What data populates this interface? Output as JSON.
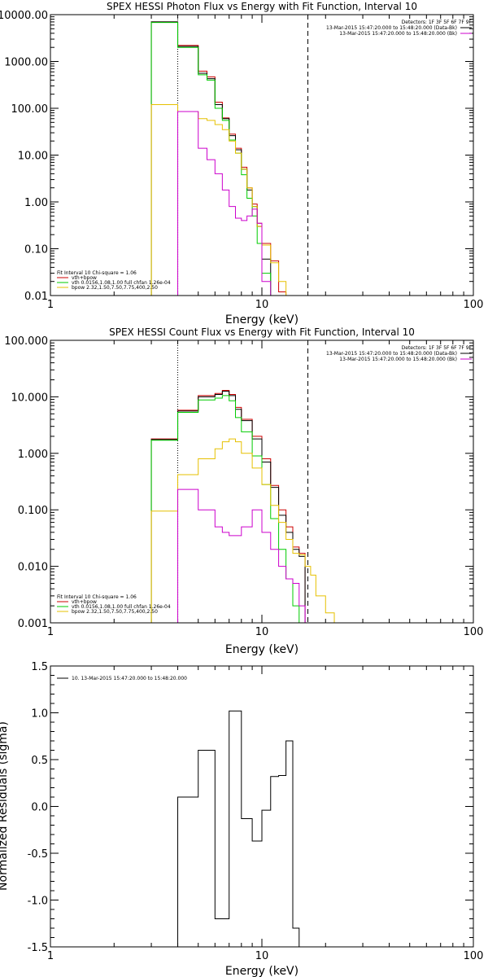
{
  "colors": {
    "total": "#000000",
    "data": "#cc0000",
    "vth": "#00cc00",
    "bpow": "#e6c000",
    "bkg": "#cc00cc"
  },
  "chart_data": [
    {
      "type": "line",
      "title": "SPEX HESSI Photon Flux vs Energy with Fit Function, Interval 10",
      "xlabel": "Energy (keV)",
      "ylabel": "",
      "xscale": "log",
      "yscale": "log",
      "xlim": [
        1,
        100
      ],
      "ylim": [
        0.01,
        10000
      ],
      "x_ticks": [
        1,
        10,
        100
      ],
      "x_tick_labels": [
        "1",
        "10",
        "100"
      ],
      "y_ticks": [
        0.01,
        0.1,
        1,
        10,
        100,
        1000,
        10000
      ],
      "y_tick_labels": [
        "0.01",
        "0.10",
        "1.00",
        "10.00",
        "100.00",
        "1000.00",
        "10000.00"
      ],
      "vlines": [
        {
          "x": 4.0,
          "style": "dotted"
        },
        {
          "x": 16.5,
          "style": "dashed"
        }
      ],
      "bin_edges": [
        3,
        4,
        5,
        5.5,
        6,
        6.5,
        7,
        7.5,
        8,
        8.5,
        9,
        9.5,
        10,
        11,
        12,
        13,
        14,
        15,
        16,
        17,
        18,
        20,
        22
      ],
      "series": [
        {
          "name": "data",
          "color": "#cc0000",
          "values": [
            7000,
            2200,
            620,
            470,
            135,
            62,
            28,
            14,
            5.5,
            2.0,
            0.9,
            0.35,
            0.13,
            0.055,
            0.012
          ]
        },
        {
          "name": "vth+bpow",
          "color": "#000000",
          "values": [
            7000,
            2100,
            560,
            430,
            120,
            60,
            26,
            13,
            5.0,
            1.8,
            0.8,
            0.3,
            0.06,
            0.008
          ]
        },
        {
          "name": "vth",
          "color": "#00cc00",
          "values": [
            6800,
            2000,
            520,
            400,
            100,
            55,
            21,
            11,
            3.8,
            1.2,
            0.5,
            0.13,
            0.03,
            0.008
          ]
        },
        {
          "name": "bpow",
          "color": "#e6c000",
          "values": [
            120,
            85,
            60,
            55,
            45,
            35,
            20,
            11,
            5.0,
            2.0,
            0.8,
            0.3,
            0.12,
            0.05,
            0.02,
            0.01
          ]
        },
        {
          "name": "bkg",
          "color": "#cc00cc",
          "values": [
            0.01,
            85,
            14,
            8,
            4,
            1.8,
            0.8,
            0.45,
            0.4,
            0.5,
            0.7,
            0.35,
            0.02,
            0.009
          ]
        }
      ],
      "legend": {
        "placement": "bottom-left",
        "lines": [
          "Fit Interval 10    Chi-square = 1.06",
          "vth+bpow",
          "vth 0.0156,1.08,1.00  full chfan 1.26e-04",
          "bpow 2.32,1.50,7.50,7.75,400,2.50"
        ]
      },
      "info": {
        "placement": "top-right",
        "lines": [
          "Detectors: 1F 3F 5F 6F 7F 9F",
          "13-Mar-2015 15:47:20.000 to 15:48:20.000 (Data-Bk)",
          "13-Mar-2015 15:47:20.000 to 15:48:20.000 (Bk)"
        ]
      }
    },
    {
      "type": "line",
      "title": "SPEX HESSI Count Flux vs Energy with Fit Function, Interval 10",
      "xlabel": "Energy (keV)",
      "ylabel": "",
      "xscale": "log",
      "yscale": "log",
      "xlim": [
        1,
        100
      ],
      "ylim": [
        0.001,
        100
      ],
      "x_ticks": [
        1,
        10,
        100
      ],
      "x_tick_labels": [
        "1",
        "10",
        "100"
      ],
      "y_ticks": [
        0.001,
        0.01,
        0.1,
        1,
        10,
        100
      ],
      "y_tick_labels": [
        "0.001",
        "0.010",
        "0.100",
        "1.000",
        "10.000",
        "100.000"
      ],
      "vlines": [
        {
          "x": 4.0,
          "style": "dotted"
        },
        {
          "x": 16.5,
          "style": "dashed"
        }
      ],
      "bin_edges": [
        3,
        4,
        5,
        6,
        6.5,
        7,
        7.5,
        8,
        9,
        10,
        11,
        12,
        13,
        14,
        15,
        16,
        17,
        18,
        20,
        22
      ],
      "series": [
        {
          "name": "data",
          "color": "#cc0000",
          "values": [
            1.8,
            5.8,
            10.5,
            11.5,
            13.0,
            11.0,
            6.5,
            4.0,
            2.0,
            0.8,
            0.27,
            0.1,
            0.05,
            0.022,
            0.017
          ]
        },
        {
          "name": "vth+bpow",
          "color": "#000000",
          "values": [
            1.75,
            5.6,
            10.0,
            11.0,
            12.5,
            10.5,
            6.0,
            3.8,
            1.8,
            0.7,
            0.25,
            0.08,
            0.04,
            0.02,
            0.015
          ]
        },
        {
          "name": "vth",
          "color": "#00cc00",
          "values": [
            1.7,
            5.3,
            8.8,
            9.5,
            10.5,
            8.5,
            4.3,
            2.4,
            0.9,
            0.28,
            0.07,
            0.02,
            0.006,
            0.002,
            0.001
          ]
        },
        {
          "name": "bpow",
          "color": "#e6c000",
          "values": [
            0.095,
            0.42,
            0.8,
            1.2,
            1.6,
            1.8,
            1.6,
            1.0,
            0.55,
            0.28,
            0.12,
            0.06,
            0.03,
            0.017,
            0.016,
            0.01,
            0.007,
            0.003,
            0.0015
          ]
        },
        {
          "name": "bkg",
          "color": "#cc00cc",
          "values": [
            0.001,
            0.23,
            0.1,
            0.05,
            0.04,
            0.035,
            0.035,
            0.05,
            0.1,
            0.04,
            0.02,
            0.01,
            0.006,
            0.005,
            0.002
          ]
        }
      ],
      "legend": {
        "placement": "bottom-left",
        "lines": [
          "Fit Interval 10    Chi-square = 1.06",
          "vth+bpow",
          "vth 0.0156,1.08,1.00  full chfan 1.26e-04",
          "bpow 2.32,1.50,7.50,7.75,400,2.50"
        ]
      },
      "info": {
        "placement": "top-right",
        "lines": [
          "Detectors: 1F 3F 5F 6F 7F 9F",
          "13-Mar-2015 15:47:20.000 to 15:48:20.000 (Data-Bk)",
          "13-Mar-2015 15:47:20.000 to 15:48:20.000 (Bk)"
        ]
      }
    },
    {
      "type": "line",
      "title": "",
      "xlabel": "Energy (keV)",
      "ylabel": "Normalized Residuals (sigma)",
      "xscale": "log",
      "yscale": "linear",
      "xlim": [
        1,
        100
      ],
      "ylim": [
        -1.5,
        1.5
      ],
      "x_ticks": [
        1,
        10,
        100
      ],
      "x_tick_labels": [
        "1",
        "10",
        "100"
      ],
      "y_ticks": [
        -1.5,
        -1.0,
        -0.5,
        0,
        0.5,
        1.0,
        1.5
      ],
      "y_tick_labels": [
        "-1.5",
        "-1.0",
        "-0.5",
        "0.0",
        "0.5",
        "1.0",
        "1.5"
      ],
      "bin_edges": [
        4,
        5,
        6,
        7,
        8,
        9,
        10,
        11,
        12,
        13,
        14,
        15
      ],
      "series": [
        {
          "name": "residuals",
          "color": "#000000",
          "values": [
            0.1,
            0.6,
            -1.2,
            1.02,
            -0.13,
            -0.37,
            -0.04,
            0.32,
            0.33,
            0.7,
            -1.3
          ]
        }
      ],
      "legend": {
        "placement": "top-left",
        "lines": [
          "10. 13-Mar-2015 15:47:20.000 to 15:48:20.000"
        ]
      }
    }
  ]
}
